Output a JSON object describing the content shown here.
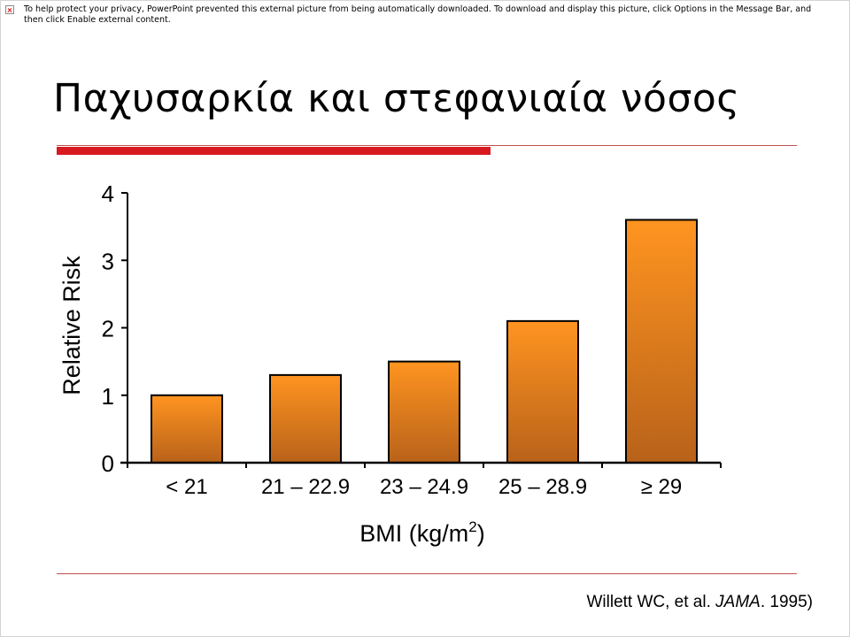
{
  "warning": {
    "text": "To help protect your privacy, PowerPoint prevented this external picture from being automatically downloaded. To download and display this picture, click Options in the Message Bar, and then click Enable external content."
  },
  "slide": {
    "title": "Παχυσαρκία και στεφανιαία νόσος",
    "accent_color": "#d71a20"
  },
  "chart_data": {
    "type": "bar",
    "categories": [
      "< 21",
      "21 – 22.9",
      "23 – 24.9",
      "25 – 28.9",
      "≥ 29"
    ],
    "values": [
      1.0,
      1.3,
      1.5,
      2.1,
      3.6
    ],
    "ylabel": "Relative Risk",
    "xlabel": "BMI (kg/m",
    "xlabel_superscript": "2",
    "xlabel_suffix": ")",
    "ylim": [
      0,
      4
    ],
    "yticks": [
      "0",
      "1",
      "2",
      "3",
      "4"
    ],
    "grid": false,
    "bar_color_top": "#ff9420",
    "bar_color_bottom": "#b8621a"
  },
  "citation": {
    "authors": "Willett WC, et al. ",
    "journal": "JAMA",
    "year": ". 1995)"
  }
}
